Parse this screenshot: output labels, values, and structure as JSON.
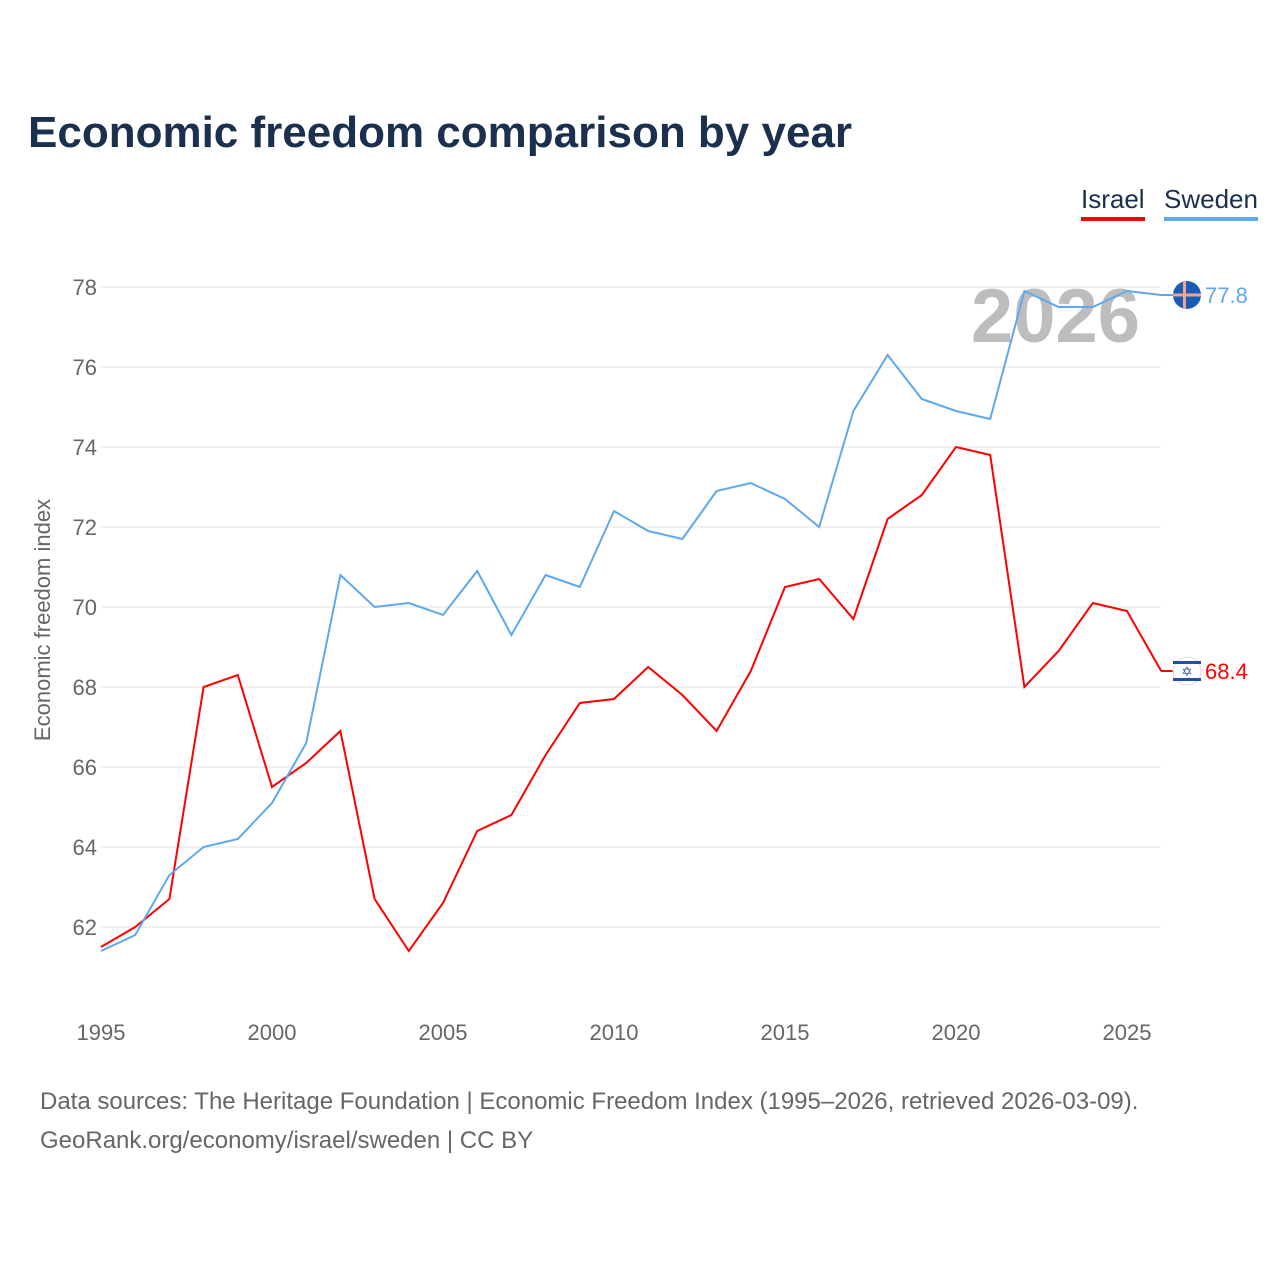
{
  "title": "Economic freedom comparison by year",
  "watermark_year": "2026",
  "footer": {
    "line1": "Data sources: The Heritage Foundation | Economic Freedom Index (1995–2026, retrieved 2026-03-09).",
    "line2": "GeoRank.org/economy/israel/sweden | CC BY"
  },
  "chart_data": {
    "type": "line",
    "title": "Economic freedom comparison by year",
    "xlabel": "",
    "ylabel": "Economic freedom index",
    "xlim": [
      1995,
      2026
    ],
    "ylim": [
      60.5,
      79
    ],
    "xticks": [
      1995,
      2000,
      2005,
      2010,
      2015,
      2020,
      2025
    ],
    "yticks": [
      62,
      64,
      66,
      68,
      70,
      72,
      74,
      76,
      78
    ],
    "grid": true,
    "legend_position": "top-right",
    "x": [
      1995,
      1996,
      1997,
      1998,
      1999,
      2000,
      2001,
      2002,
      2003,
      2004,
      2005,
      2006,
      2007,
      2008,
      2009,
      2010,
      2011,
      2012,
      2013,
      2014,
      2015,
      2016,
      2017,
      2018,
      2019,
      2020,
      2021,
      2022,
      2023,
      2024,
      2025,
      2026
    ],
    "series": [
      {
        "name": "Israel",
        "color": "#ff0000",
        "end_label": "68.4",
        "flag": "israel-flag",
        "values": [
          61.5,
          62.0,
          62.7,
          68.0,
          68.3,
          65.5,
          66.1,
          66.9,
          62.7,
          61.4,
          62.6,
          64.4,
          64.8,
          66.3,
          67.6,
          67.7,
          68.5,
          67.8,
          66.9,
          68.4,
          70.5,
          70.7,
          69.7,
          72.2,
          72.8,
          74.0,
          73.8,
          68.0,
          68.9,
          70.1,
          69.9,
          68.4
        ]
      },
      {
        "name": "Sweden",
        "color": "#5fa8ec",
        "end_label": "77.8",
        "flag": "sweden-flag",
        "values": [
          61.4,
          61.8,
          63.3,
          64.0,
          64.2,
          65.1,
          66.6,
          70.8,
          70.0,
          70.1,
          69.8,
          70.9,
          69.3,
          70.8,
          70.5,
          72.4,
          71.9,
          71.7,
          72.9,
          73.1,
          72.7,
          72.0,
          74.9,
          76.3,
          75.2,
          74.9,
          74.7,
          77.9,
          77.5,
          77.5,
          77.9,
          77.8
        ]
      }
    ]
  }
}
